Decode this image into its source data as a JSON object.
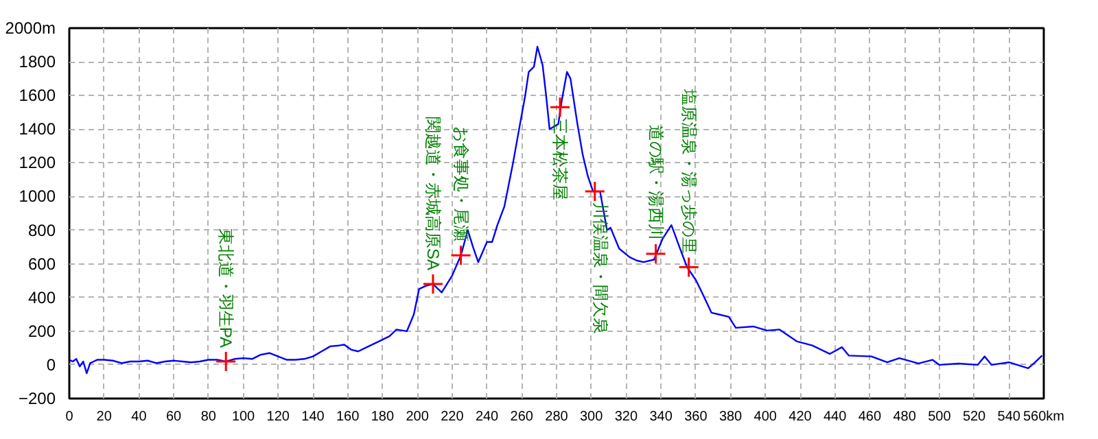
{
  "chart_data": {
    "type": "line",
    "x": [
      0,
      2,
      4,
      6,
      8,
      10,
      12,
      14,
      16,
      20,
      25,
      30,
      35,
      40,
      45,
      50,
      55,
      60,
      65,
      70,
      75,
      80,
      85,
      90,
      95,
      100,
      105,
      110,
      115,
      120,
      125,
      130,
      135,
      140,
      145,
      150,
      155,
      158,
      162,
      166,
      172,
      178,
      184,
      188,
      194,
      198,
      201,
      205,
      209,
      214,
      220,
      225,
      229,
      232,
      235,
      240,
      243,
      246,
      250,
      255,
      259,
      262,
      264,
      267,
      269,
      272,
      274,
      276,
      281,
      283,
      286,
      288,
      292,
      295,
      298,
      301,
      305,
      309,
      311,
      316,
      322,
      326,
      330,
      336,
      341,
      346,
      351,
      355,
      360,
      364,
      369,
      373,
      379,
      383,
      393,
      401,
      408,
      418,
      427,
      437,
      444,
      448,
      461,
      470,
      477,
      488,
      496,
      500,
      511,
      522,
      526,
      530,
      540,
      551,
      555,
      559
    ],
    "series": [
      {
        "color": "#0000ff",
        "values": [
          30,
          20,
          35,
          -10,
          20,
          -50,
          10,
          20,
          30,
          30,
          25,
          10,
          20,
          20,
          25,
          10,
          20,
          25,
          20,
          15,
          20,
          30,
          30,
          20,
          35,
          40,
          35,
          60,
          70,
          50,
          30,
          30,
          35,
          50,
          80,
          110,
          115,
          120,
          90,
          80,
          110,
          140,
          170,
          210,
          200,
          300,
          450,
          470,
          480,
          430,
          530,
          650,
          800,
          700,
          610,
          730,
          730,
          830,
          940,
          1200,
          1430,
          1600,
          1740,
          1770,
          1890,
          1780,
          1600,
          1400,
          1430,
          1570,
          1740,
          1700,
          1430,
          1250,
          1120,
          1030,
          1030,
          800,
          815,
          690,
          640,
          620,
          610,
          625,
          750,
          830,
          690,
          580,
          505,
          420,
          310,
          300,
          285,
          220,
          228,
          204,
          210,
          140,
          115,
          65,
          105,
          55,
          50,
          15,
          40,
          8,
          30,
          0,
          8,
          0,
          50,
          0,
          15,
          -20,
          15,
          55
        ]
      }
    ],
    "xlim": [
      0,
      560
    ],
    "ylim": [
      -200,
      2000
    ],
    "xticks": [
      0,
      20,
      40,
      60,
      80,
      100,
      120,
      140,
      160,
      180,
      200,
      220,
      240,
      260,
      280,
      300,
      320,
      340,
      360,
      380,
      400,
      420,
      440,
      460,
      480,
      500,
      520,
      540,
      {
        "value": 560,
        "label": "560km"
      }
    ],
    "yticks": [
      -200,
      0,
      200,
      400,
      600,
      800,
      1000,
      1200,
      1400,
      1600,
      1800,
      {
        "value": 2000,
        "label": "2000m"
      }
    ],
    "grid": true,
    "marker": "none",
    "line_style": "solid",
    "annotations": [
      {
        "text": "東北道・羽生PA",
        "x": 90,
        "y": 20
      },
      {
        "text": "関越道・赤城高原SA",
        "x": 209,
        "y": 480
      },
      {
        "text": "お食事処・尾瀬",
        "x": 225,
        "y": 650
      },
      {
        "text": "三本松茶屋",
        "x": 282,
        "y": 1530
      },
      {
        "text": "川俣温泉・間欠泉",
        "x": 302,
        "y": 1030
      },
      {
        "text": "道の駅・湯西川",
        "x": 337,
        "y": 660
      },
      {
        "text": "塩原温泉・湯っ歩の里",
        "x": 356,
        "y": 580
      }
    ]
  }
}
